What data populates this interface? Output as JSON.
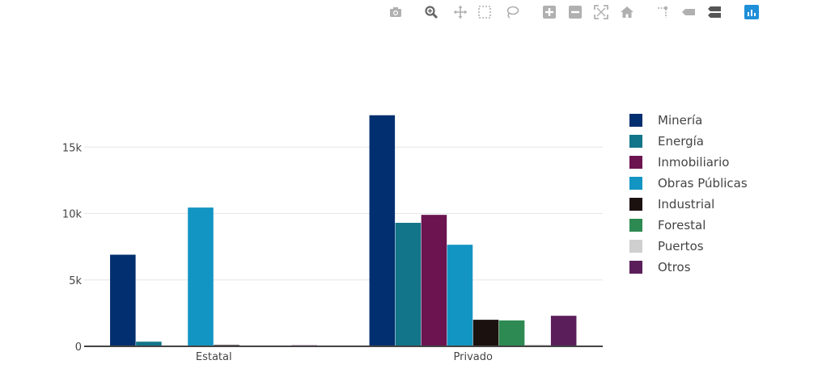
{
  "modebar": {
    "buttons": [
      {
        "name": "camera-icon",
        "color": "#b0b0b0"
      },
      {
        "name": "zoom-icon",
        "color": "#666666"
      },
      {
        "name": "pan-icon",
        "color": "#b0b0b0"
      },
      {
        "name": "box-select-icon",
        "color": "#b0b0b0"
      },
      {
        "name": "lasso-select-icon",
        "color": "#b0b0b0"
      },
      {
        "name": "zoom-in-icon",
        "color": "#b0b0b0"
      },
      {
        "name": "zoom-out-icon",
        "color": "#b0b0b0"
      },
      {
        "name": "autoscale-icon",
        "color": "#b0b0b0"
      },
      {
        "name": "home-icon",
        "color": "#b0b0b0"
      },
      {
        "name": "spike-lines-icon",
        "color": "#b0b0b0"
      },
      {
        "name": "hover-closest-icon",
        "color": "#b0b0b0"
      },
      {
        "name": "hover-compare-icon",
        "color": "#555555"
      },
      {
        "name": "plotly-logo-icon",
        "color": "#1f8fd8"
      }
    ]
  },
  "chart_data": {
    "type": "bar",
    "categories": [
      "Estatal",
      "Privado"
    ],
    "ylim": [
      0,
      20000
    ],
    "y_ticks": [
      0,
      5000,
      10000,
      15000
    ],
    "y_tick_labels": [
      "0",
      "5k",
      "10k",
      "15k"
    ],
    "grid": true,
    "legend_position": "right",
    "series": [
      {
        "name": "Minería",
        "color": "#022f6f",
        "values": [
          6900,
          17400
        ]
      },
      {
        "name": "Energía",
        "color": "#12758a",
        "values": [
          350,
          9300
        ]
      },
      {
        "name": "Inmobiliario",
        "color": "#6b1450",
        "values": [
          0,
          9900
        ]
      },
      {
        "name": "Obras Públicas",
        "color": "#1395c3",
        "values": [
          10450,
          7650
        ]
      },
      {
        "name": "Industrial",
        "color": "#1b1210",
        "values": [
          100,
          2000
        ]
      },
      {
        "name": "Forestal",
        "color": "#2d8a52",
        "values": [
          0,
          1950
        ]
      },
      {
        "name": "Puertos",
        "color": "#cfcfcf",
        "values": [
          30,
          130
        ]
      },
      {
        "name": "Otros",
        "color": "#5a1f5a",
        "values": [
          80,
          2300
        ]
      }
    ]
  }
}
